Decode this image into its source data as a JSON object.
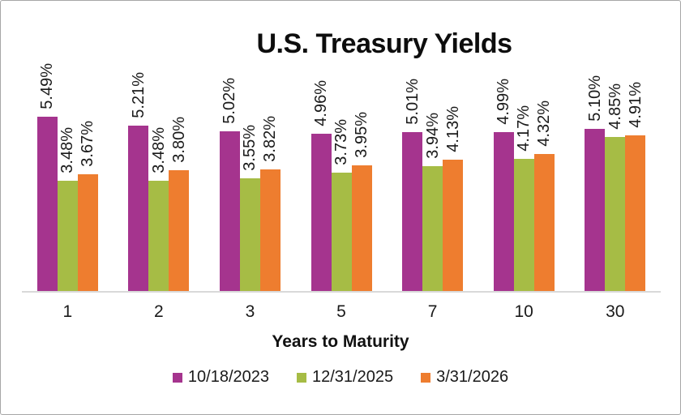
{
  "chart_data": {
    "type": "bar",
    "title": "U.S. Treasury Yields",
    "xlabel": "Years to Maturity",
    "ylabel": "",
    "categories": [
      "1",
      "2",
      "3",
      "5",
      "7",
      "10",
      "30"
    ],
    "series": [
      {
        "name": "10/18/2023",
        "color": "#A5348E",
        "values": [
          5.49,
          5.21,
          5.02,
          4.96,
          5.01,
          4.99,
          5.1
        ],
        "labels": [
          "5.49%",
          "5.21%",
          "5.02%",
          "4.96%",
          "5.01%",
          "4.99%",
          "5.10%"
        ]
      },
      {
        "name": "12/31/2025",
        "color": "#A6BC45",
        "values": [
          3.48,
          3.48,
          3.55,
          3.73,
          3.94,
          4.17,
          4.85
        ],
        "labels": [
          "3.48%",
          "3.48%",
          "3.55%",
          "3.73%",
          "3.94%",
          "4.17%",
          "4.85%"
        ]
      },
      {
        "name": "3/31/2026",
        "color": "#EE7D2F",
        "values": [
          3.67,
          3.8,
          3.82,
          3.95,
          4.13,
          4.32,
          4.91
        ],
        "labels": [
          "3.67%",
          "3.80%",
          "3.82%",
          "3.95%",
          "4.13%",
          "4.32%",
          "4.91%"
        ]
      }
    ],
    "ylim": [
      0,
      5.6
    ],
    "value_suffix": "%",
    "data_labels_rotation": 90,
    "grid": false,
    "legend_position": "bottom",
    "axis_line_color": "#D9D9D9"
  }
}
